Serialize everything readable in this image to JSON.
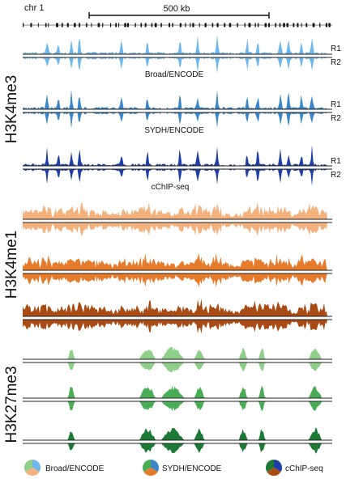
{
  "chart_data": {
    "type": "area",
    "chromosome_label": "chr 1",
    "scale_bar_label": "500 kb",
    "replicate_labels": [
      "R1",
      "R2"
    ],
    "groups": [
      {
        "name": "H3K4me3",
        "tracks": [
          {
            "source": "Broad/ENCODE",
            "color": "#6fb6ea"
          },
          {
            "source": "SYDH/ENCODE",
            "color": "#3a86c8"
          },
          {
            "source": "cChIP-seq",
            "color": "#1f3fa6"
          }
        ]
      },
      {
        "name": "H3K4me1",
        "tracks": [
          {
            "source": "Broad/ENCODE",
            "color": "#f3b27d"
          },
          {
            "source": "SYDH/ENCODE",
            "color": "#e77b2c"
          },
          {
            "source": "cChIP-seq",
            "color": "#a94b14"
          }
        ]
      },
      {
        "name": "H3K27me3",
        "tracks": [
          {
            "source": "Broad/ENCODE",
            "color": "#8fcf8a"
          },
          {
            "source": "SYDH/ENCODE",
            "color": "#49ad55"
          },
          {
            "source": "cChIP-seq",
            "color": "#1c7a36"
          }
        ]
      }
    ],
    "legend": [
      {
        "label": "Broad/ENCODE",
        "colors": [
          "#6fb6ea",
          "#f3b27d",
          "#8fcf8a"
        ]
      },
      {
        "label": "SYDH/ENCODE",
        "colors": [
          "#3a86c8",
          "#e77b2c",
          "#49ad55"
        ]
      },
      {
        "label": "cChIP-seq",
        "colors": [
          "#1f3fa6",
          "#a94b14",
          "#1c7a36"
        ]
      }
    ]
  }
}
